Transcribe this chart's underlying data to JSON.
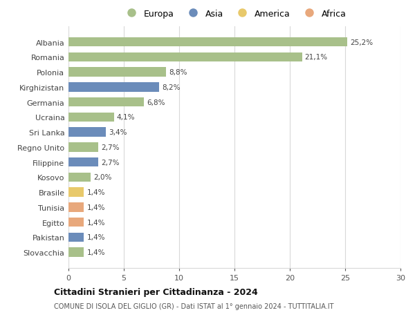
{
  "countries": [
    "Albania",
    "Romania",
    "Polonia",
    "Kirghizistan",
    "Germania",
    "Ucraina",
    "Sri Lanka",
    "Regno Unito",
    "Filippine",
    "Kosovo",
    "Brasile",
    "Tunisia",
    "Egitto",
    "Pakistan",
    "Slovacchia"
  ],
  "values": [
    25.2,
    21.1,
    8.8,
    8.2,
    6.8,
    4.1,
    3.4,
    2.7,
    2.7,
    2.0,
    1.4,
    1.4,
    1.4,
    1.4,
    1.4
  ],
  "labels": [
    "25,2%",
    "21,1%",
    "8,8%",
    "8,2%",
    "6,8%",
    "4,1%",
    "3,4%",
    "2,7%",
    "2,7%",
    "2,0%",
    "1,4%",
    "1,4%",
    "1,4%",
    "1,4%",
    "1,4%"
  ],
  "continents": [
    "Europa",
    "Europa",
    "Europa",
    "Asia",
    "Europa",
    "Europa",
    "Asia",
    "Europa",
    "Asia",
    "Europa",
    "America",
    "Africa",
    "Africa",
    "Asia",
    "Europa"
  ],
  "colors": {
    "Europa": "#a8c08a",
    "Asia": "#6b8cba",
    "America": "#e8c96b",
    "Africa": "#e8a87c"
  },
  "title": "Cittadini Stranieri per Cittadinanza - 2024",
  "subtitle": "COMUNE DI ISOLA DEL GIGLIO (GR) - Dati ISTAT al 1° gennaio 2024 - TUTTITALIA.IT",
  "xlim": [
    0,
    30
  ],
  "xticks": [
    0,
    5,
    10,
    15,
    20,
    25,
    30
  ],
  "legend_labels": [
    "Europa",
    "Asia",
    "America",
    "Africa"
  ],
  "background_color": "#ffffff",
  "grid_color": "#d8d8d8"
}
